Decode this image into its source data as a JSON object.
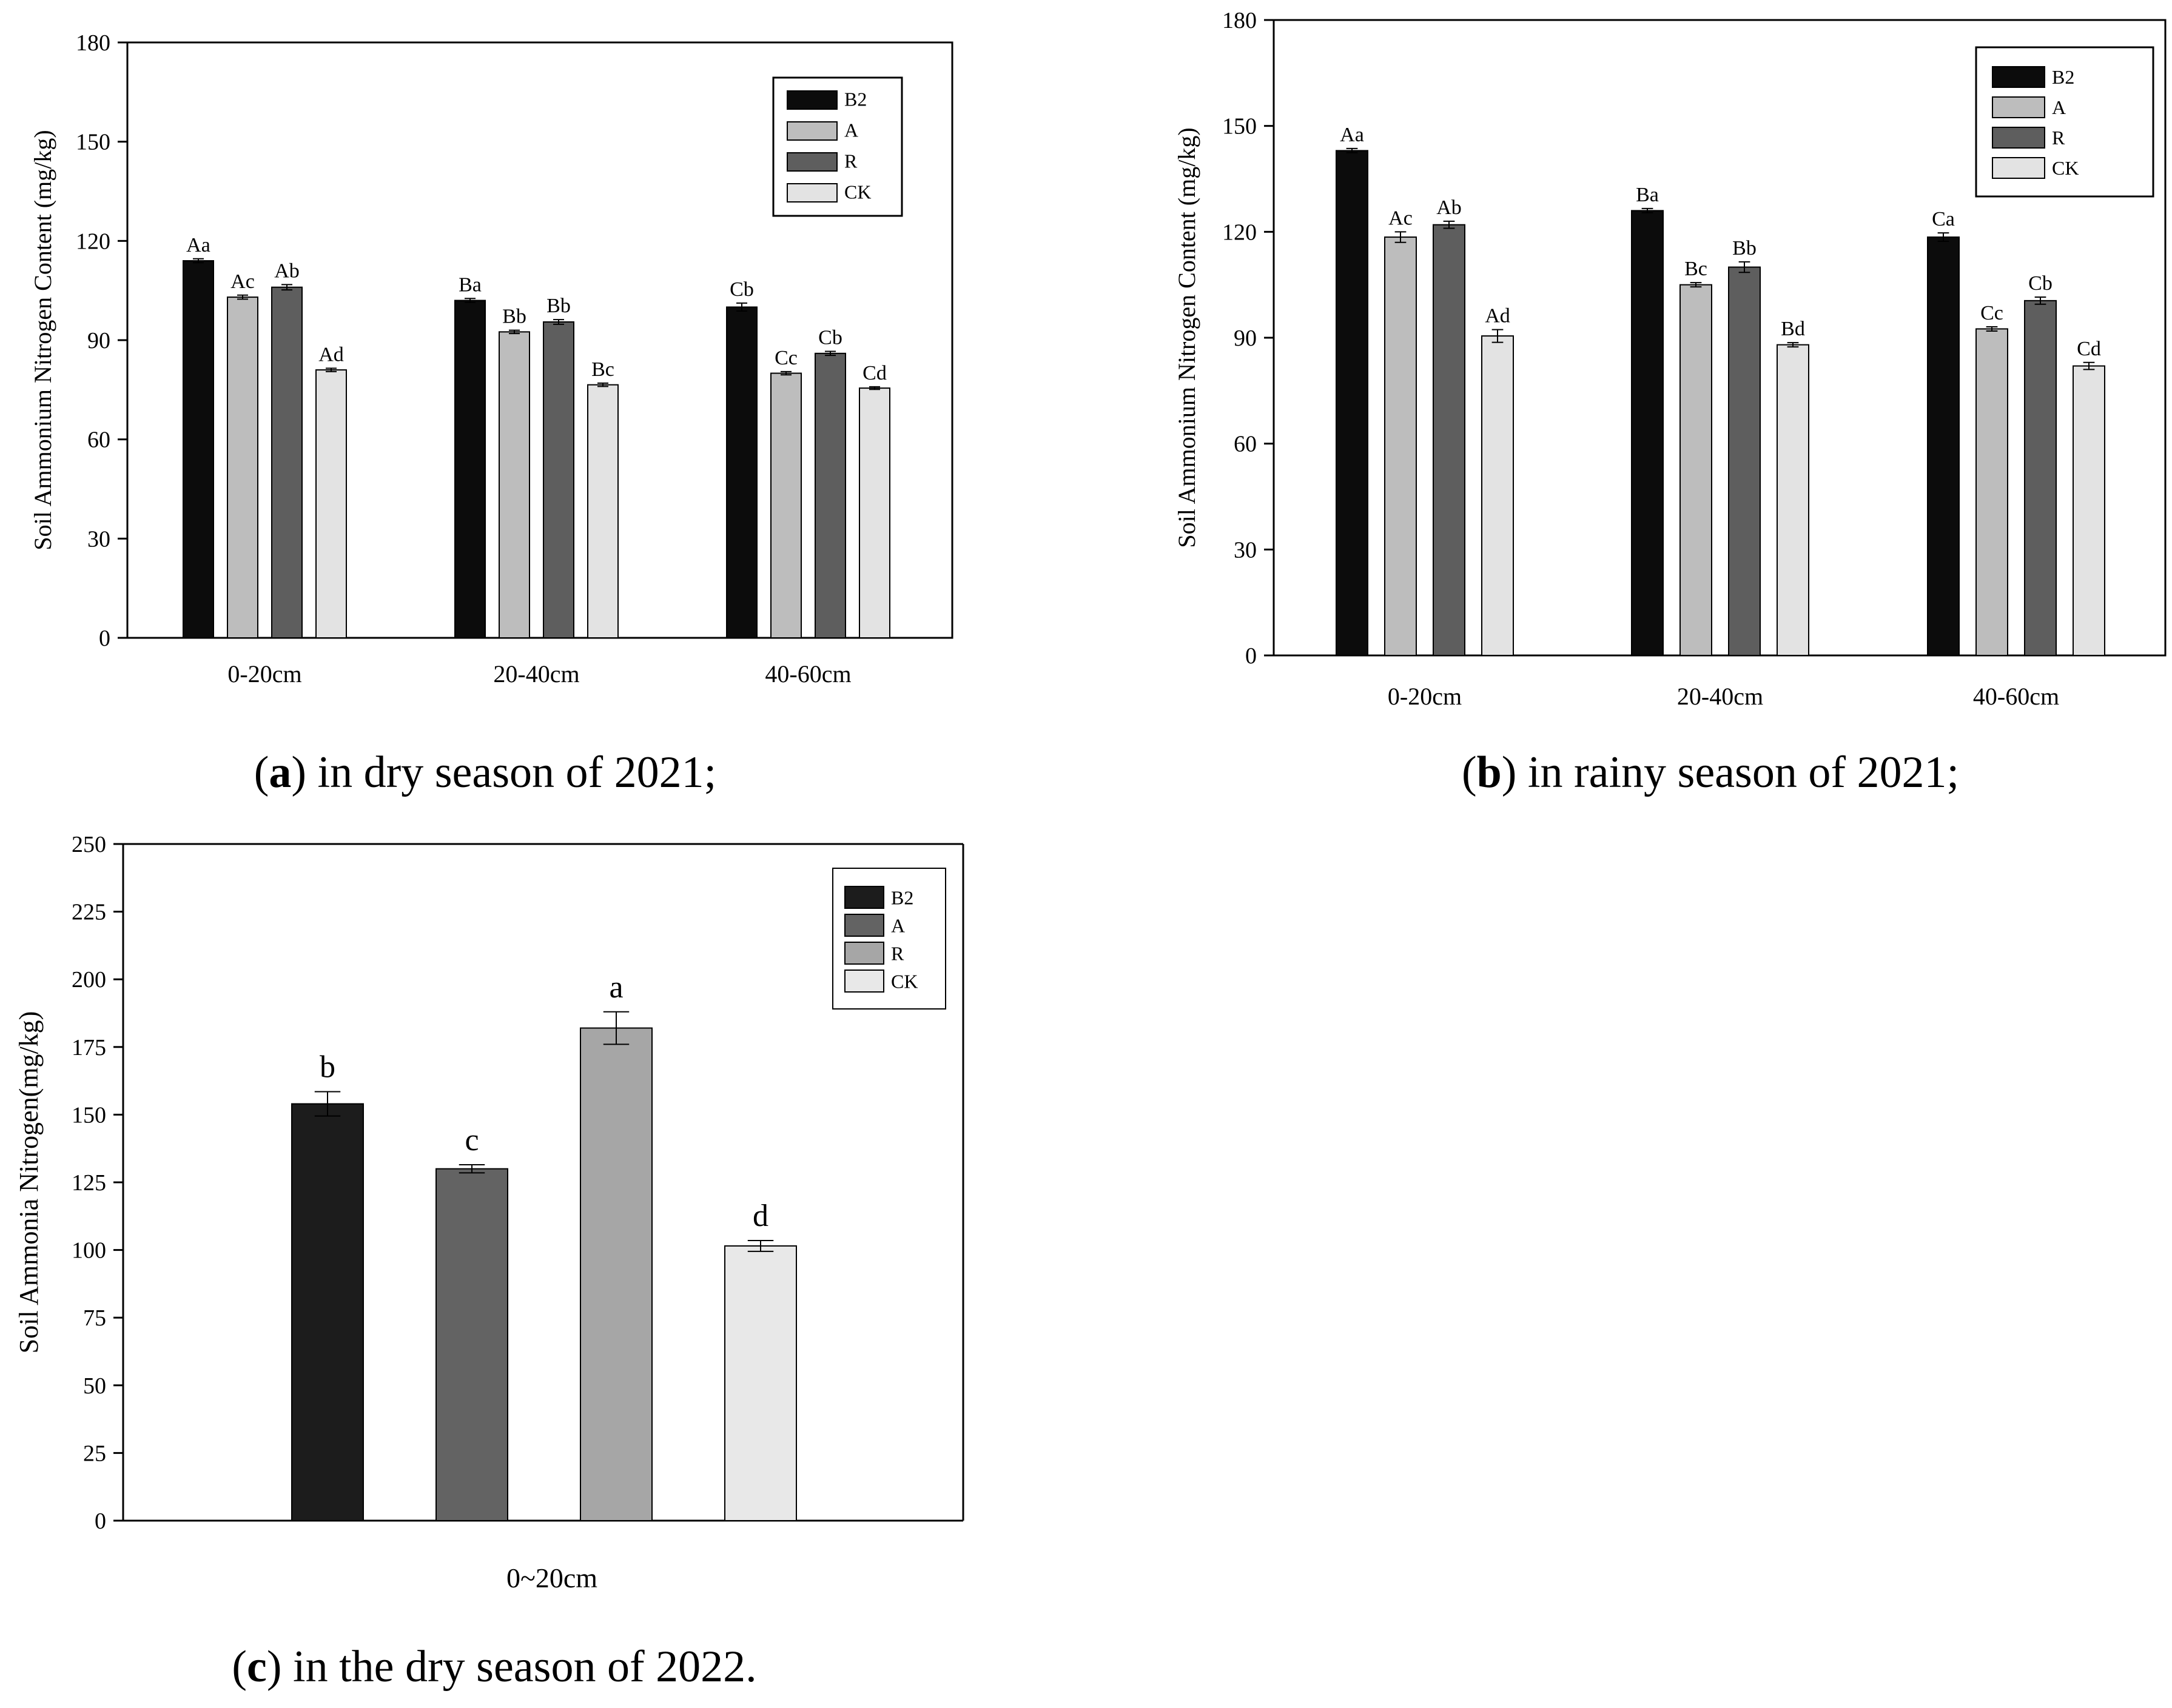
{
  "chart_data": [
    {
      "id": "a",
      "type": "bar",
      "caption_letter": "a",
      "caption_open": "(",
      "caption_rest": ") in dry season of 2021;",
      "ylabel": "Soil Ammonium Nitrogen Content (mg/kg)",
      "xlabel": "",
      "ylim": [
        0,
        180
      ],
      "yticks": [
        0,
        30,
        60,
        90,
        120,
        150,
        180
      ],
      "categories": [
        "0-20cm",
        "20-40cm",
        "40-60cm"
      ],
      "legend": [
        "B2",
        "A",
        "R",
        "CK"
      ],
      "legend_position": "top-right",
      "colors": [
        "#0c0c0c",
        "#bdbdbd",
        "#5e5e5e",
        "#e3e3e3"
      ],
      "series": [
        {
          "name": "B2",
          "values": [
            114,
            102,
            100
          ],
          "errors": [
            0.6,
            0.6,
            1.2
          ],
          "labels": [
            "Aa",
            "Ba",
            "Cb"
          ]
        },
        {
          "name": "A",
          "values": [
            103,
            92.5,
            80
          ],
          "errors": [
            0.6,
            0.5,
            0.5
          ],
          "labels": [
            "Ac",
            "Bb",
            "Cc"
          ]
        },
        {
          "name": "R",
          "values": [
            106,
            95.5,
            86
          ],
          "errors": [
            0.8,
            0.7,
            0.6
          ],
          "labels": [
            "Ab",
            "Bb",
            "Cb"
          ]
        },
        {
          "name": "CK",
          "values": [
            81,
            76.5,
            75.5
          ],
          "errors": [
            0.5,
            0.5,
            0.4
          ],
          "labels": [
            "Ad",
            "Bc",
            "Cd"
          ]
        }
      ]
    },
    {
      "id": "b",
      "type": "bar",
      "caption_letter": "b",
      "caption_open": "(",
      "caption_rest": ") in rainy season of 2021;",
      "ylabel": "Soil Ammonium Nitrogen Content (mg/kg)",
      "xlabel": "",
      "ylim": [
        0,
        180
      ],
      "yticks": [
        0,
        30,
        60,
        90,
        120,
        150,
        180
      ],
      "categories": [
        "0-20cm",
        "20-40cm",
        "40-60cm"
      ],
      "legend": [
        "B2",
        "A",
        "R",
        "CK"
      ],
      "legend_position": "top-right",
      "colors": [
        "#0c0c0c",
        "#bdbdbd",
        "#5e5e5e",
        "#e3e3e3"
      ],
      "series": [
        {
          "name": "B2",
          "values": [
            143,
            126,
            118.5
          ],
          "errors": [
            0.6,
            0.6,
            1.2
          ],
          "labels": [
            "Aa",
            "Ba",
            "Ca"
          ]
        },
        {
          "name": "A",
          "values": [
            118.5,
            105,
            92.5
          ],
          "errors": [
            1.5,
            0.6,
            0.6
          ],
          "labels": [
            "Ac",
            "Bc",
            "Cc"
          ]
        },
        {
          "name": "R",
          "values": [
            122,
            110,
            100.5
          ],
          "errors": [
            1.0,
            1.5,
            1.0
          ],
          "labels": [
            "Ab",
            "Bb",
            "Cb"
          ]
        },
        {
          "name": "CK",
          "values": [
            90.5,
            88,
            82
          ],
          "errors": [
            1.8,
            0.6,
            1.0
          ],
          "labels": [
            "Ad",
            "Bd",
            "Cd"
          ]
        }
      ]
    },
    {
      "id": "c",
      "type": "bar",
      "caption_letter": "c",
      "caption_open": "(",
      "caption_rest": ") in the dry season of 2022.",
      "ylabel": "Soil Ammonia Nitrogen(mg/kg)",
      "xlabel": "0~20cm",
      "ylim": [
        0,
        250
      ],
      "yticks": [
        0,
        25,
        50,
        75,
        100,
        125,
        150,
        175,
        200,
        225,
        250
      ],
      "categories": [
        "0~20cm"
      ],
      "legend": [
        "B2",
        "A",
        "R",
        "CK"
      ],
      "legend_position": "top-right",
      "colors": [
        "#1c1c1c",
        "#636363",
        "#a6a6a6",
        "#e8e8e8"
      ],
      "series": [
        {
          "name": "B2",
          "values": [
            154
          ],
          "errors": [
            4.5
          ],
          "labels": [
            "b"
          ]
        },
        {
          "name": "A",
          "values": [
            130
          ],
          "errors": [
            1.5
          ],
          "labels": [
            "c"
          ]
        },
        {
          "name": "R",
          "values": [
            182
          ],
          "errors": [
            6
          ],
          "labels": [
            "a"
          ]
        },
        {
          "name": "CK",
          "values": [
            101.5
          ],
          "errors": [
            2
          ],
          "labels": [
            "d"
          ]
        }
      ]
    }
  ]
}
